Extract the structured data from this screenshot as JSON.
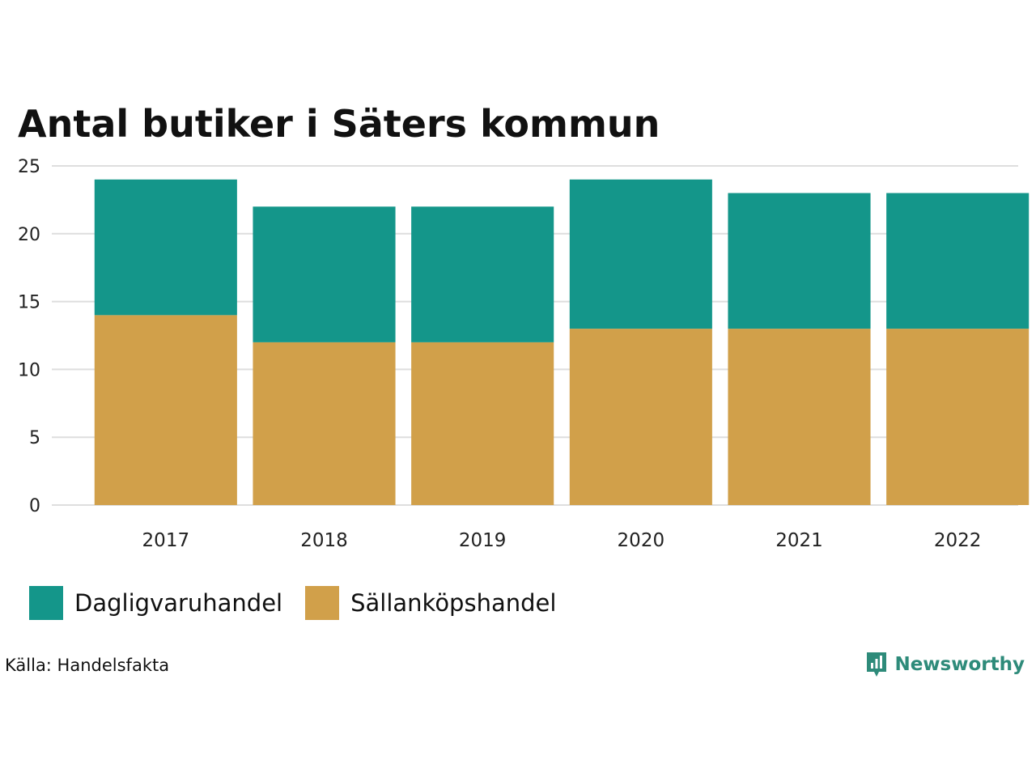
{
  "chart_data": {
    "type": "bar",
    "stacked": true,
    "title": "Antal butiker i Säters kommun",
    "categories": [
      "2017",
      "2018",
      "2019",
      "2020",
      "2021",
      "2022"
    ],
    "series": [
      {
        "name": "Sällanköpshandel",
        "values": [
          14,
          12,
          12,
          13,
          13,
          13
        ],
        "color": "#D1A04A"
      },
      {
        "name": "Dagligvaruhandel",
        "values": [
          10,
          10,
          10,
          11,
          10,
          10
        ],
        "color": "#14968A"
      }
    ],
    "ylim": [
      0,
      25
    ],
    "yticks": [
      "0",
      "5",
      "10",
      "15",
      "20",
      "25"
    ],
    "grid": true,
    "legend_position": "bottom-left"
  },
  "legend": [
    {
      "label": "Dagligvaruhandel",
      "color": "#14968A"
    },
    {
      "label": "Sällanköpshandel",
      "color": "#D1A04A"
    }
  ],
  "source": "Källa: Handelsfakta",
  "brand": {
    "name": "Newsworthy",
    "color": "#2E8B7A",
    "icon": "newsworthy-chart-icon"
  }
}
